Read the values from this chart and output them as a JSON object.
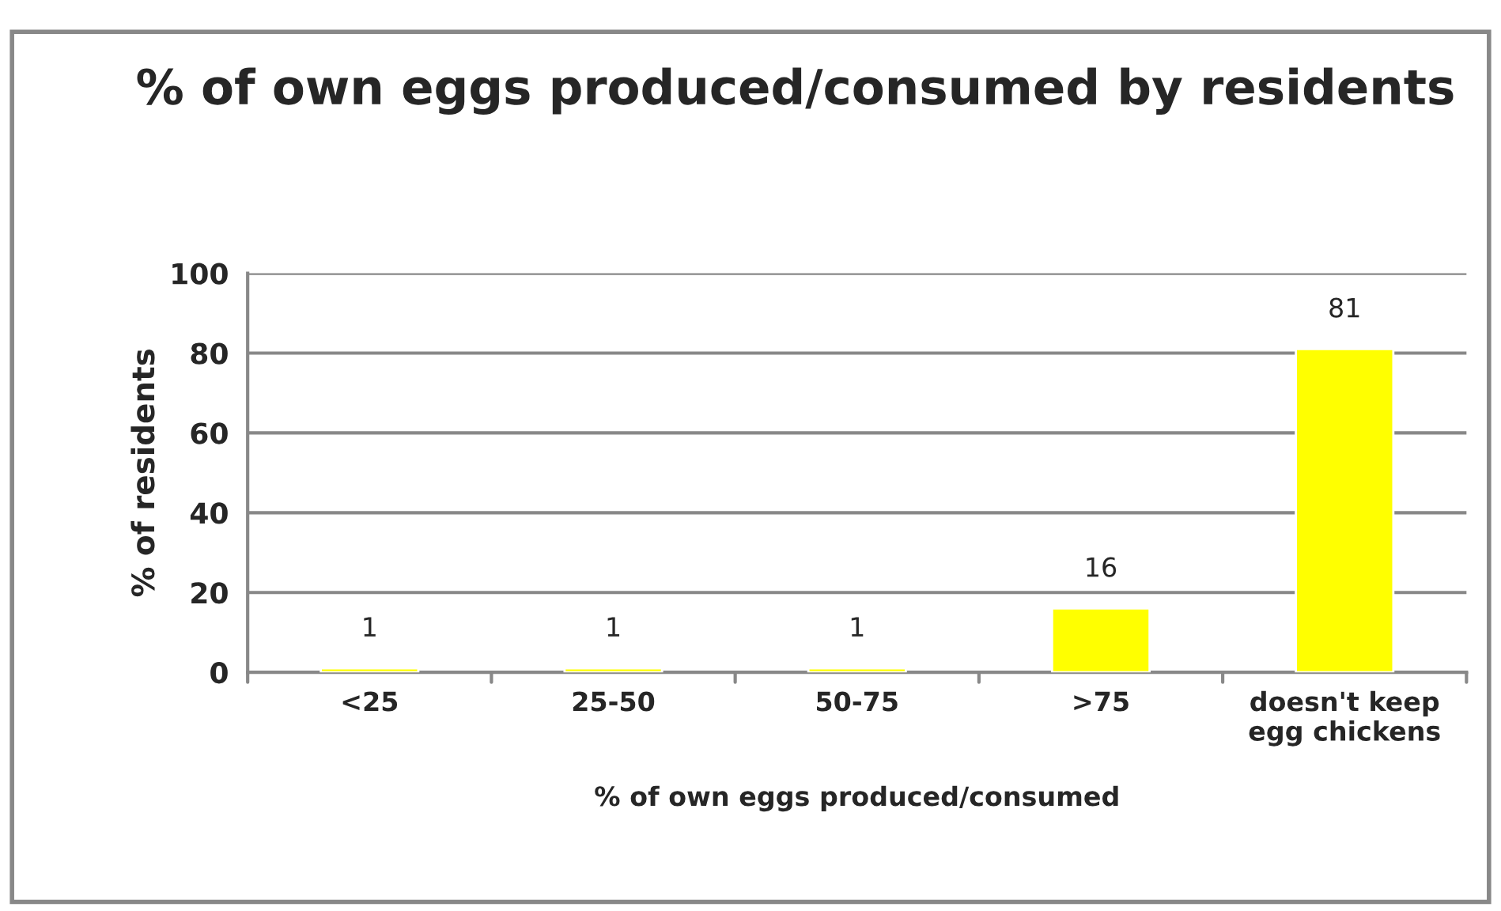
{
  "chart_data": {
    "type": "bar",
    "title": "% of own eggs produced/consumed by residents",
    "xlabel": "% of own eggs produced/consumed",
    "ylabel": "% of residents",
    "categories": [
      "<25",
      "25-50",
      "50-75",
      ">75",
      "doesn't keep\negg chickens"
    ],
    "values": [
      1,
      1,
      1,
      16,
      81
    ],
    "color": "#ffff00",
    "ylim": [
      0,
      100
    ],
    "yticks": [
      0,
      20,
      40,
      60,
      80,
      100
    ],
    "grid": "y",
    "data_labels": true
  }
}
